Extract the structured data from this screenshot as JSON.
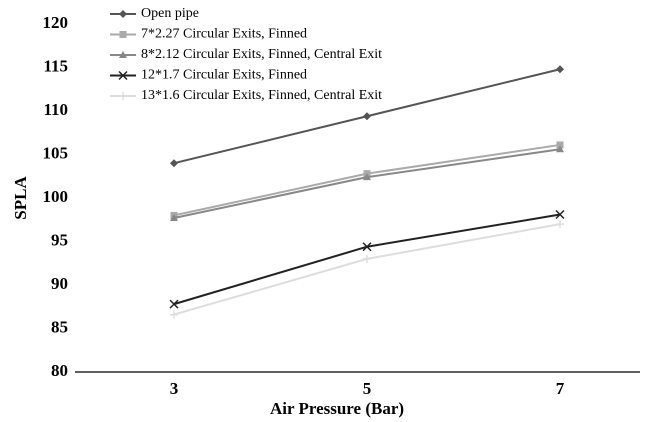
{
  "chart_data": {
    "type": "line",
    "x_label": "Air Pressure (Bar)",
    "y_label": "SPLA",
    "categories": [
      "3",
      "5",
      "7"
    ],
    "ylim": [
      80,
      120
    ],
    "yticks": [
      80,
      85,
      90,
      95,
      100,
      105,
      110,
      115,
      120
    ],
    "series": [
      {
        "name": "Open pipe",
        "color": "#555555",
        "marker": "diamond",
        "values": [
          104.0,
          109.4,
          114.8
        ]
      },
      {
        "name": "7*2.27 Circular Exits, Finned",
        "color": "#aaaaaa",
        "marker": "square",
        "values": [
          98.0,
          102.8,
          106.1
        ]
      },
      {
        "name": "8*2.12 Circular Exits, Finned, Central Exit",
        "color": "#888888",
        "marker": "triangle",
        "values": [
          97.7,
          102.4,
          105.6
        ]
      },
      {
        "name": "12*1.7 Circular Exits, Finned",
        "color": "#222222",
        "marker": "x",
        "values": [
          87.8,
          94.4,
          98.1
        ]
      },
      {
        "name": "13*1.6 Circular Exits, Finned, Central Exit",
        "color": "#dddddd",
        "marker": "plus",
        "values": [
          86.6,
          93.0,
          97.0
        ]
      }
    ],
    "legend": "top-left"
  }
}
